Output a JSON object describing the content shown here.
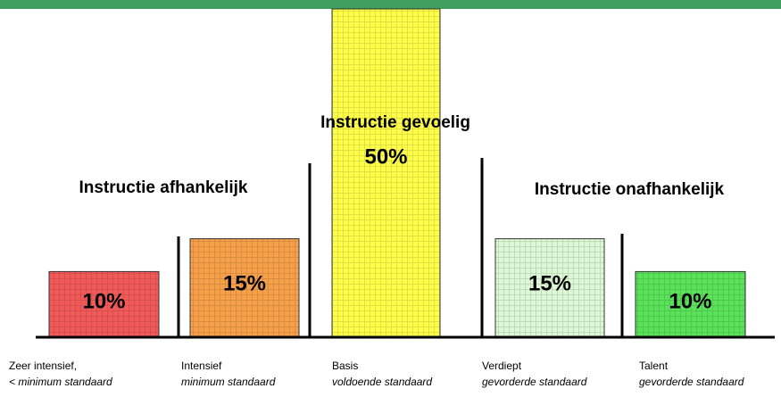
{
  "chart_data": {
    "type": "bar",
    "categories": [
      "Zeer intensief,",
      "Intensief",
      "Basis",
      "Verdiept",
      "Talent"
    ],
    "category_notes": [
      "< minimum standaard",
      "minimum standaard",
      "voldoende standaard",
      "gevorderde standaard",
      "gevorderde standaard"
    ],
    "values": [
      10,
      15,
      50,
      15,
      10
    ],
    "value_labels": [
      "10%",
      "15%",
      "50%",
      "15%",
      "10%"
    ],
    "colors": [
      "#f25a5a",
      "#f7a04a",
      "#ffff4a",
      "#dcf8d4",
      "#5ae25a"
    ],
    "groups": [
      "Instructie afhankelijk",
      "Instructie gevoelig",
      "Instructie onafhankelijk"
    ]
  }
}
